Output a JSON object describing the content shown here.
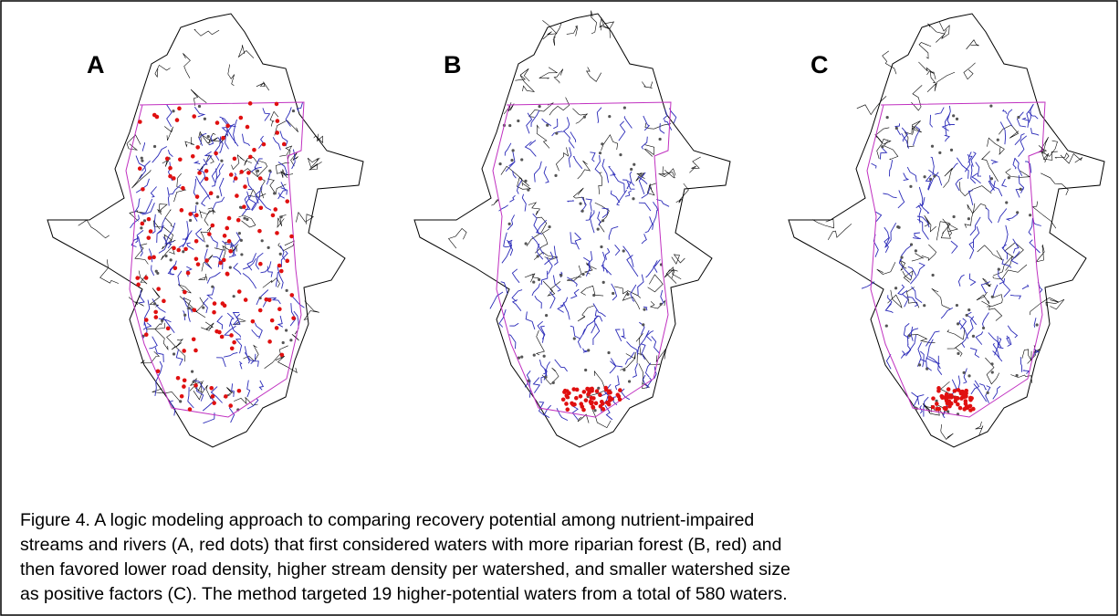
{
  "panels": [
    {
      "label": "A"
    },
    {
      "label": "B"
    },
    {
      "label": "C"
    }
  ],
  "caption": [
    "Figure 4.  A logic modeling approach to comparing recovery potential among nutrient-impaired",
    "streams and rivers (A, red dots) that first considered waters with more riparian forest (B, red) and",
    "then favored lower road density, higher stream density per watershed, and smaller watershed size",
    "as positive factors (C).  The method targeted 19 higher-potential waters from a total of 580 waters."
  ]
}
